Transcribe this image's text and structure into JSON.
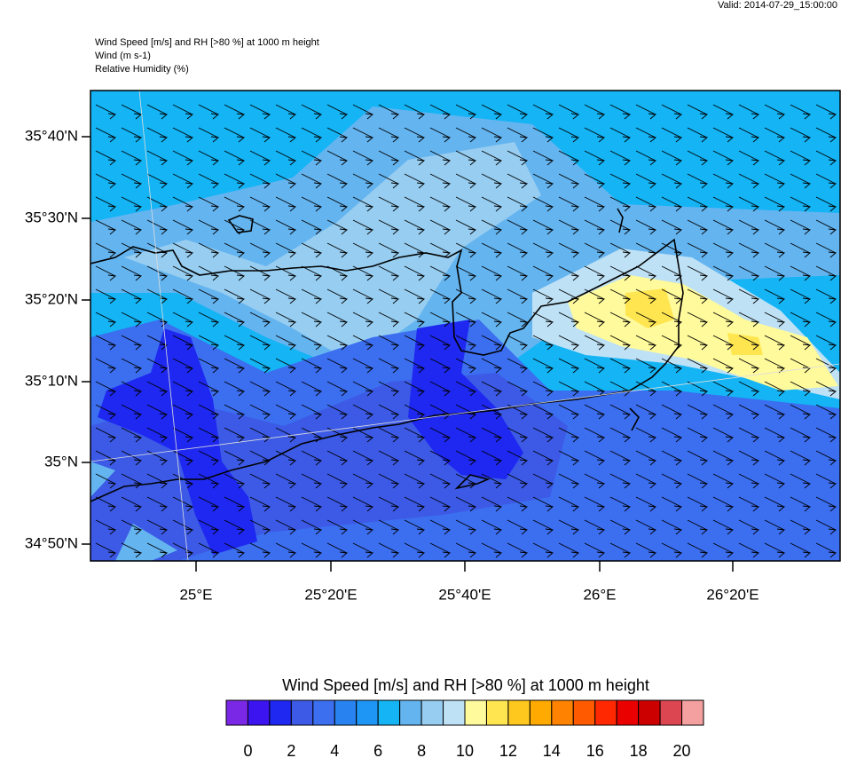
{
  "valid": "Valid: 2014-07-29_15:00:00",
  "header": {
    "lines": [
      "Wind Speed [m/s] and RH [>80 %] at 1000 m height",
      "Wind   (m s-1)",
      "Relative Humidity   (%)"
    ]
  },
  "map": {
    "lat_labels": [
      "35°40'N",
      "35°30'N",
      "35°20'N",
      "35°10'N",
      "35°N",
      "34°50'N"
    ],
    "lon_labels": [
      "25°E",
      "25°20'E",
      "25°40'E",
      "26°E",
      "26°20'E"
    ]
  },
  "colorbar": {
    "title": "Wind Speed [m/s] and RH [>80 %] at 1000 m height",
    "colors": [
      "#7a28e6",
      "#3c14f0",
      "#1e28f0",
      "#3c5ae6",
      "#3c6ef0",
      "#2882f0",
      "#1e96f5",
      "#14b4f5",
      "#64b4f0",
      "#96cdf0",
      "#bee1f5",
      "#fffa9b",
      "#ffe650",
      "#ffc81e",
      "#ffaa00",
      "#ff8200",
      "#ff5a00",
      "#ff2800",
      "#eb0000",
      "#cd0000",
      "#dc4650",
      "#f5a0a0"
    ],
    "labels": [
      0,
      2,
      4,
      6,
      8,
      10,
      12,
      14,
      16,
      18,
      20
    ]
  }
}
